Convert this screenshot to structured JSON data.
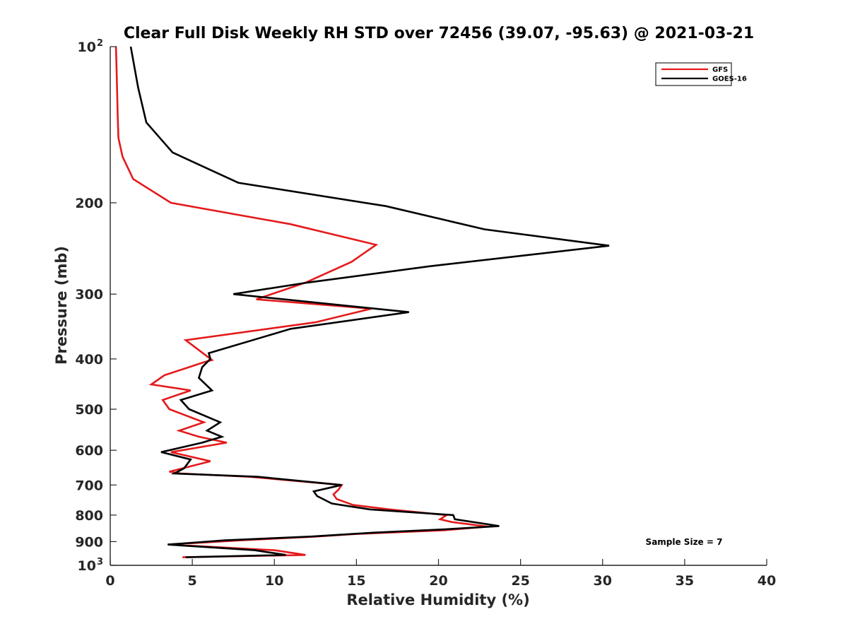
{
  "chart_data": {
    "type": "line",
    "title": "Clear Full Disk Weekly RH STD over 72456 (39.07, -95.63) @ 2021-03-21",
    "xlabel": "Relative Humidity (%)",
    "ylabel": "Pressure (mb)",
    "xlim": [
      0,
      40
    ],
    "ylim": [
      100,
      1000
    ],
    "yscale": "log",
    "yaxis_reversed": true,
    "x_ticks": [
      {
        "value": 0,
        "label": "0"
      },
      {
        "value": 5,
        "label": "5"
      },
      {
        "value": 10,
        "label": "10"
      },
      {
        "value": 15,
        "label": "15"
      },
      {
        "value": 20,
        "label": "20"
      },
      {
        "value": 25,
        "label": "25"
      },
      {
        "value": 30,
        "label": "30"
      },
      {
        "value": 35,
        "label": "35"
      },
      {
        "value": 40,
        "label": "40"
      }
    ],
    "y_ticks": [
      {
        "value": 100,
        "base": "10",
        "exp": "2"
      },
      {
        "value": 200,
        "base": "200",
        "exp": ""
      },
      {
        "value": 300,
        "base": "300",
        "exp": ""
      },
      {
        "value": 400,
        "base": "400",
        "exp": ""
      },
      {
        "value": 500,
        "base": "500",
        "exp": ""
      },
      {
        "value": 600,
        "base": "600",
        "exp": ""
      },
      {
        "value": 700,
        "base": "700",
        "exp": ""
      },
      {
        "value": 800,
        "base": "800",
        "exp": ""
      },
      {
        "value": 900,
        "base": "900",
        "exp": ""
      },
      {
        "value": 1000,
        "base": "10",
        "exp": "3"
      }
    ],
    "legend": {
      "position": "top-right",
      "entries": [
        "GFS",
        "GOES-16"
      ]
    },
    "annotations": [
      "Sample Size = 7"
    ],
    "series": [
      {
        "name": "GFS",
        "color": "#e41a1c",
        "points": [
          [
            0.35,
            100
          ],
          [
            0.4,
            115
          ],
          [
            0.45,
            135
          ],
          [
            0.5,
            150
          ],
          [
            0.75,
            163
          ],
          [
            1.4,
            180
          ],
          [
            3.7,
            200
          ],
          [
            11.0,
            220
          ],
          [
            16.2,
            241
          ],
          [
            14.7,
            260
          ],
          [
            11.9,
            285
          ],
          [
            8.9,
            307
          ],
          [
            15.9,
            320
          ],
          [
            12.5,
            340
          ],
          [
            4.6,
            368
          ],
          [
            6.2,
            402
          ],
          [
            5.8,
            405
          ],
          [
            3.3,
            430
          ],
          [
            2.5,
            448
          ],
          [
            4.9,
            460
          ],
          [
            3.2,
            480
          ],
          [
            3.6,
            500
          ],
          [
            5.7,
            530
          ],
          [
            4.2,
            550
          ],
          [
            5.4,
            565
          ],
          [
            7.1,
            580
          ],
          [
            3.7,
            605
          ],
          [
            6.1,
            630
          ],
          [
            3.6,
            660
          ],
          [
            4.3,
            665
          ],
          [
            8.5,
            675
          ],
          [
            14.1,
            700
          ],
          [
            13.9,
            715
          ],
          [
            13.6,
            730
          ],
          [
            13.8,
            745
          ],
          [
            14.8,
            765
          ],
          [
            17.0,
            780
          ],
          [
            20.5,
            800
          ],
          [
            20.1,
            815
          ],
          [
            20.8,
            825
          ],
          [
            23.0,
            842
          ],
          [
            20.3,
            856
          ],
          [
            15.0,
            870
          ],
          [
            12.5,
            880
          ],
          [
            8.0,
            895
          ],
          [
            3.6,
            912
          ],
          [
            10.0,
            935
          ],
          [
            11.9,
            955
          ],
          [
            4.4,
            965
          ]
        ]
      },
      {
        "name": "GOES-16",
        "color": "#000000",
        "points": [
          [
            1.25,
            100
          ],
          [
            1.7,
            120
          ],
          [
            2.2,
            140
          ],
          [
            3.8,
            160
          ],
          [
            7.8,
            183
          ],
          [
            16.8,
            203
          ],
          [
            22.8,
            225
          ],
          [
            30.4,
            242
          ],
          [
            19.5,
            265
          ],
          [
            12.0,
            285
          ],
          [
            7.5,
            300
          ],
          [
            18.2,
            325
          ],
          [
            11.0,
            350
          ],
          [
            6.0,
            390
          ],
          [
            6.1,
            400
          ],
          [
            5.6,
            415
          ],
          [
            5.4,
            435
          ],
          [
            6.2,
            460
          ],
          [
            4.3,
            480
          ],
          [
            4.8,
            500
          ],
          [
            6.7,
            530
          ],
          [
            5.9,
            550
          ],
          [
            6.8,
            565
          ],
          [
            5.6,
            580
          ],
          [
            3.1,
            605
          ],
          [
            4.9,
            625
          ],
          [
            4.5,
            650
          ],
          [
            3.9,
            665
          ],
          [
            9.0,
            675
          ],
          [
            14.1,
            700
          ],
          [
            12.4,
            720
          ],
          [
            12.6,
            735
          ],
          [
            13.5,
            760
          ],
          [
            15.8,
            780
          ],
          [
            20.9,
            800
          ],
          [
            21.0,
            815
          ],
          [
            23.7,
            840
          ],
          [
            20.5,
            852
          ],
          [
            16.0,
            865
          ],
          [
            12.2,
            880
          ],
          [
            7.0,
            895
          ],
          [
            3.5,
            912
          ],
          [
            8.8,
            935
          ],
          [
            10.7,
            955
          ],
          [
            4.6,
            965
          ]
        ]
      }
    ]
  }
}
